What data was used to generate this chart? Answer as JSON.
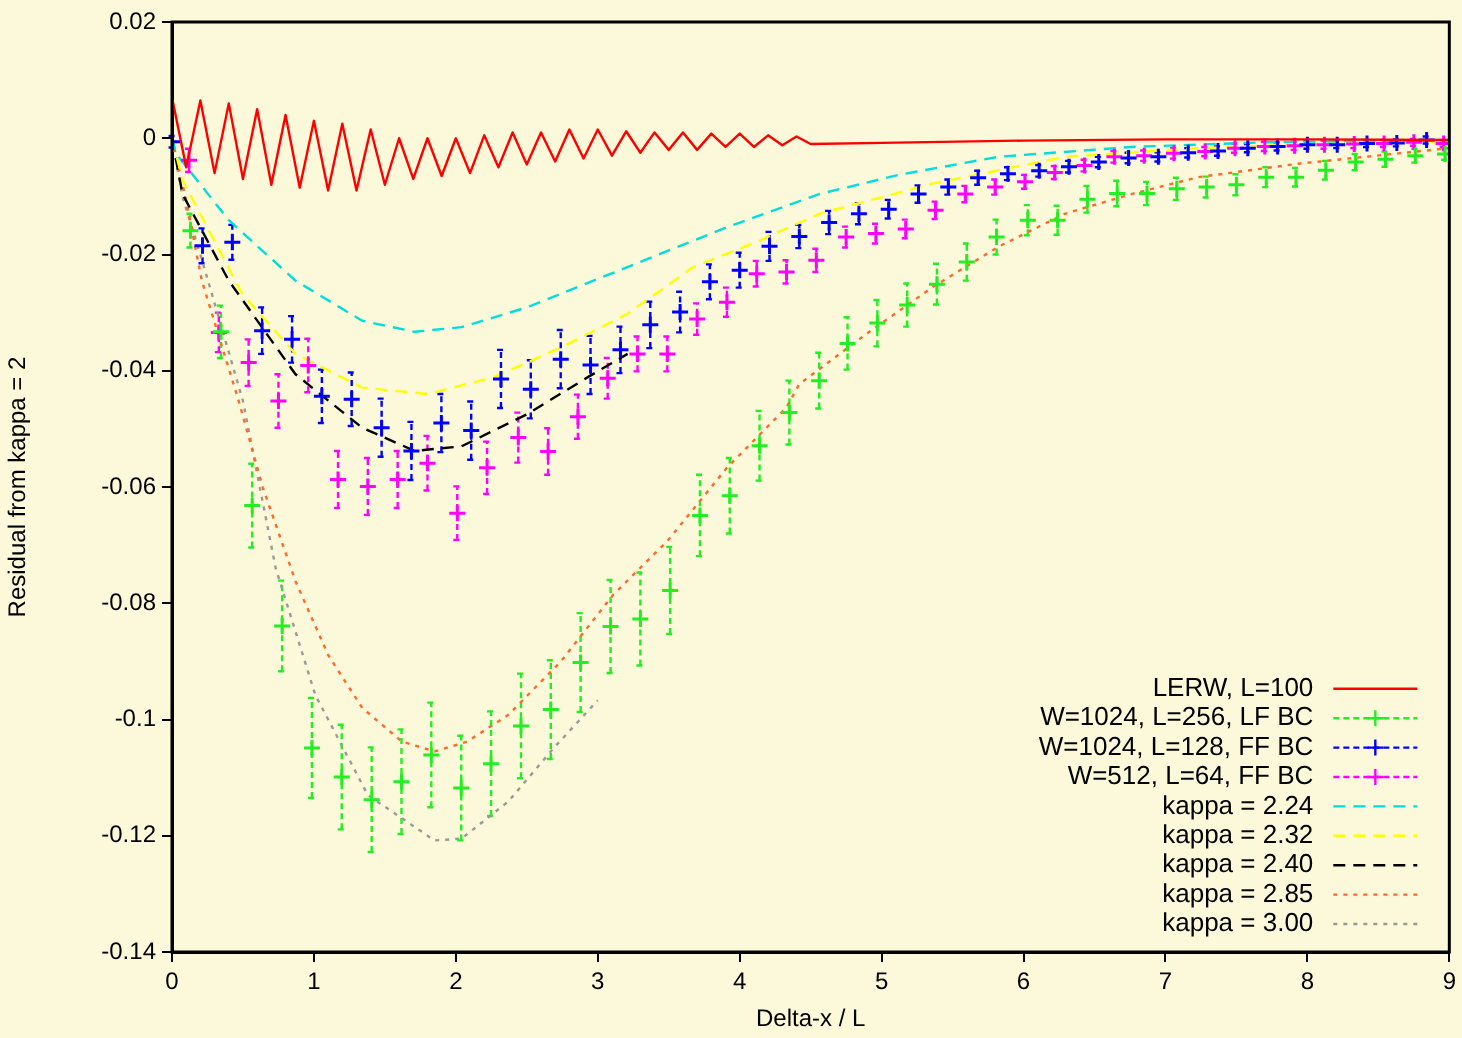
{
  "chart_data": {
    "type": "line",
    "xlabel": "Delta-x / L",
    "ylabel": "Residual from kappa = 2",
    "xlim": [
      0,
      9
    ],
    "xticks": [
      0,
      1,
      2,
      3,
      4,
      5,
      6,
      7,
      8,
      9
    ],
    "ylim": [
      -0.14,
      0.02
    ],
    "yticks": [
      -0.14,
      -0.12,
      -0.1,
      -0.08,
      -0.06,
      -0.04,
      -0.02,
      0,
      0.02
    ],
    "grid": false,
    "legend": "bottom right",
    "series": [
      {
        "name": "LERW, L=100",
        "color": "#ff0000",
        "line_style": "solid",
        "marker": "none",
        "x": [
          0,
          0.1,
          0.2,
          0.3,
          0.4,
          0.5,
          0.6,
          0.7,
          0.8,
          0.9,
          1.0,
          1.1,
          1.2,
          1.3,
          1.4,
          1.5,
          1.6,
          1.7,
          1.8,
          1.9,
          2.0,
          2.1,
          2.2,
          2.3,
          2.4,
          2.5,
          2.6,
          2.7,
          2.8,
          2.9,
          3.0,
          3.1,
          3.2,
          3.3,
          3.4,
          3.5,
          3.6,
          3.7,
          3.8,
          3.9,
          4.0,
          4.1,
          4.2,
          4.3,
          4.4,
          4.5,
          5,
          6,
          7,
          8,
          9
        ],
        "values": [
          0.007,
          -0.005,
          0.0065,
          -0.006,
          0.006,
          -0.007,
          0.005,
          -0.008,
          0.004,
          -0.0085,
          0.003,
          -0.009,
          0.0025,
          -0.009,
          0.0015,
          -0.008,
          0.0,
          -0.007,
          0.0,
          -0.0065,
          0.0,
          -0.006,
          0.0005,
          -0.005,
          0.001,
          -0.0045,
          0.001,
          -0.004,
          0.0015,
          -0.0035,
          0.0015,
          -0.003,
          0.0012,
          -0.0025,
          0.001,
          -0.002,
          0.001,
          -0.002,
          0.0008,
          -0.0015,
          0.0008,
          -0.0015,
          0.0005,
          -0.0012,
          0.0003,
          -0.001,
          -0.0008,
          -0.0004,
          -0.0002,
          -0.0002,
          -0.0003
        ]
      },
      {
        "name": "W=1024, L=256, LF BC",
        "type": "scatter",
        "color": "#22ee22",
        "marker": "cross",
        "x": [
          0.13,
          0.345,
          0.565,
          0.776,
          0.986,
          1.196,
          1.407,
          1.617,
          1.827,
          2.038,
          2.248,
          2.459,
          2.669,
          2.879,
          3.09,
          3.3,
          3.51,
          3.72,
          3.93,
          4.14,
          4.35,
          4.56,
          4.76,
          4.97,
          5.18,
          5.39,
          5.6,
          5.81,
          6.03,
          6.24,
          6.45,
          6.66,
          6.87,
          7.08,
          7.29,
          7.5,
          7.71,
          7.92,
          8.13,
          8.34,
          8.55,
          8.76,
          8.97
        ],
        "values": [
          -0.0159,
          -0.0333,
          -0.0632,
          -0.0839,
          -0.1049,
          -0.1099,
          -0.1138,
          -0.1107,
          -0.1061,
          -0.1118,
          -0.1076,
          -0.1011,
          -0.0983,
          -0.0902,
          -0.084,
          -0.0827,
          -0.0778,
          -0.0649,
          -0.0615,
          -0.0529,
          -0.0472,
          -0.0417,
          -0.0353,
          -0.0318,
          -0.0287,
          -0.0251,
          -0.0213,
          -0.017,
          -0.0141,
          -0.0141,
          -0.0105,
          -0.0095,
          -0.0095,
          -0.0087,
          -0.0084,
          -0.008,
          -0.0067,
          -0.0067,
          -0.0055,
          -0.0041,
          -0.0036,
          -0.003,
          -0.0027
        ],
        "errors": [
          0.0029,
          0.0045,
          0.0072,
          0.0078,
          0.0086,
          0.009,
          0.009,
          0.009,
          0.009,
          0.009,
          0.009,
          0.009,
          0.0085,
          0.0085,
          0.008,
          0.008,
          0.0075,
          0.007,
          0.0065,
          0.006,
          0.0055,
          0.0048,
          0.0045,
          0.004,
          0.0037,
          0.0035,
          0.0032,
          0.003,
          0.0026,
          0.0025,
          0.0023,
          0.0022,
          0.002,
          0.0019,
          0.0018,
          0.0018,
          0.0017,
          0.0016,
          0.0016,
          0.0014,
          0.0013,
          0.0012,
          0.001
        ]
      },
      {
        "name": "W=1024, L=128, FF BC",
        "type": "scatter",
        "color": "#0000ff",
        "marker": "cross",
        "x": [
          0.004,
          0.215,
          0.425,
          0.635,
          0.846,
          1.056,
          1.266,
          1.477,
          1.687,
          1.898,
          2.108,
          2.318,
          2.528,
          2.739,
          2.949,
          3.16,
          3.37,
          3.58,
          3.79,
          4.0,
          4.21,
          4.42,
          4.63,
          4.84,
          5.05,
          5.26,
          5.47,
          5.68,
          5.89,
          6.11,
          6.32,
          6.53,
          6.74,
          6.95,
          7.16,
          7.37,
          7.58,
          7.79,
          8.0,
          8.21,
          8.42,
          8.63,
          8.84
        ],
        "values": [
          -0.0006,
          -0.0185,
          -0.0179,
          -0.0331,
          -0.0346,
          -0.0444,
          -0.0449,
          -0.0498,
          -0.0538,
          -0.049,
          -0.0503,
          -0.0414,
          -0.0432,
          -0.038,
          -0.039,
          -0.0364,
          -0.0321,
          -0.0299,
          -0.0247,
          -0.0227,
          -0.0186,
          -0.0169,
          -0.0145,
          -0.013,
          -0.0122,
          -0.0096,
          -0.0084,
          -0.0068,
          -0.0061,
          -0.0056,
          -0.0049,
          -0.0041,
          -0.0034,
          -0.0032,
          -0.0025,
          -0.0022,
          -0.0017,
          -0.0014,
          -0.0011,
          -0.0011,
          -0.0009,
          -0.0008,
          -0.0003
        ],
        "errors": [
          0.001,
          0.003,
          0.003,
          0.004,
          0.004,
          0.0046,
          0.0046,
          0.005,
          0.005,
          0.005,
          0.005,
          0.005,
          0.005,
          0.005,
          0.005,
          0.004,
          0.004,
          0.0035,
          0.003,
          0.003,
          0.0025,
          0.002,
          0.002,
          0.0018,
          0.0016,
          0.0015,
          0.0013,
          0.0012,
          0.0011,
          0.001,
          0.001,
          0.0009,
          0.0009,
          0.0008,
          0.0008,
          0.0008,
          0.0007,
          0.0007,
          0.0007,
          0.0006,
          0.0006,
          0.0006,
          0.0006
        ]
      },
      {
        "name": "W=512, L=64, FF BC",
        "type": "scatter",
        "color": "#ff00ff",
        "marker": "cross",
        "x": [
          0.12,
          0.33,
          0.54,
          0.75,
          0.96,
          1.17,
          1.38,
          1.59,
          1.8,
          2.01,
          2.22,
          2.44,
          2.65,
          2.86,
          3.07,
          3.28,
          3.49,
          3.7,
          3.91,
          4.12,
          4.33,
          4.54,
          4.75,
          4.96,
          5.17,
          5.38,
          5.59,
          5.8,
          6.01,
          6.22,
          6.43,
          6.64,
          6.85,
          7.06,
          7.28,
          7.49,
          7.7,
          7.91,
          8.12,
          8.33,
          8.54,
          8.75,
          8.96
        ],
        "values": [
          -0.0038,
          -0.0334,
          -0.0386,
          -0.0452,
          -0.0391,
          -0.0587,
          -0.0599,
          -0.0587,
          -0.0559,
          -0.0645,
          -0.0567,
          -0.0515,
          -0.0539,
          -0.0479,
          -0.0413,
          -0.0371,
          -0.0371,
          -0.0311,
          -0.0282,
          -0.0233,
          -0.023,
          -0.021,
          -0.017,
          -0.0164,
          -0.0156,
          -0.0124,
          -0.0096,
          -0.0084,
          -0.0075,
          -0.0059,
          -0.0047,
          -0.0032,
          -0.003,
          -0.0026,
          -0.0023,
          -0.0017,
          -0.0014,
          -0.0013,
          -0.0011,
          -0.001,
          -0.0009,
          -0.0007,
          -0.0009
        ],
        "errors": [
          0.002,
          0.0034,
          0.004,
          0.0046,
          0.0046,
          0.0049,
          0.0049,
          0.0049,
          0.0047,
          0.0046,
          0.0045,
          0.0043,
          0.004,
          0.0038,
          0.0035,
          0.003,
          0.003,
          0.0027,
          0.0025,
          0.0022,
          0.002,
          0.002,
          0.0018,
          0.0017,
          0.0016,
          0.0015,
          0.0014,
          0.0013,
          0.0012,
          0.0011,
          0.001,
          0.001,
          0.0009,
          0.0009,
          0.0008,
          0.0008,
          0.0008,
          0.0007,
          0.0007,
          0.0007,
          0.0006,
          0.0006,
          0.0006
        ]
      },
      {
        "name": "kappa = 2.24",
        "color": "#00dddd",
        "line_style": "dashed",
        "marker": "none",
        "x": [
          0,
          0.03,
          0.4,
          0.87,
          1.34,
          1.71,
          2.04,
          2.5,
          2.97,
          3.44,
          3.91,
          4.56,
          5.12,
          5.82,
          6.76,
          7.69,
          9
        ],
        "values": [
          0,
          -0.0027,
          -0.0141,
          -0.0245,
          -0.0314,
          -0.0333,
          -0.0325,
          -0.0291,
          -0.0245,
          -0.0199,
          -0.0153,
          -0.0096,
          -0.0063,
          -0.0032,
          -0.0015,
          -0.0007,
          -0.0003
        ]
      },
      {
        "name": "kappa = 2.32",
        "color": "#ffff00",
        "line_style": "dashed",
        "marker": "none",
        "x": [
          0,
          0.074,
          0.495,
          0.87,
          1.34,
          1.8,
          2.27,
          2.74,
          3.21,
          3.67,
          4.14,
          4.56,
          5.36,
          6.29,
          7.23,
          8.16,
          9
        ],
        "values": [
          0,
          -0.0072,
          -0.0268,
          -0.0371,
          -0.0429,
          -0.044,
          -0.0411,
          -0.036,
          -0.0302,
          -0.0222,
          -0.0176,
          -0.013,
          -0.0078,
          -0.0032,
          -0.0017,
          -0.0009,
          -0.0005
        ]
      },
      {
        "name": "kappa = 2.40",
        "color": "#000000",
        "line_style": "dashed",
        "marker": "none",
        "x": [
          0,
          0.074,
          0.4,
          0.87,
          1.34,
          1.71,
          2.04,
          2.5,
          2.93,
          3.21
        ],
        "values": [
          0,
          -0.0096,
          -0.0245,
          -0.0406,
          -0.0498,
          -0.0538,
          -0.053,
          -0.0475,
          -0.0411,
          -0.0371
        ]
      },
      {
        "name": "kappa = 2.85",
        "color": "#ff6a2a",
        "line_style": "dotted",
        "marker": "none",
        "x": [
          0,
          0.1,
          0.21,
          0.47,
          0.64,
          0.87,
          1.1,
          1.34,
          1.62,
          1.85,
          2.08,
          2.37,
          2.74,
          3.11,
          3.49,
          3.91,
          4.33,
          4.42,
          4.89,
          5.36,
          5.82,
          6.29,
          6.76,
          7.23,
          7.93,
          9
        ],
        "values": [
          0,
          -0.0107,
          -0.0245,
          -0.0452,
          -0.0601,
          -0.0762,
          -0.0889,
          -0.098,
          -0.1038,
          -0.1055,
          -0.1038,
          -0.0992,
          -0.09,
          -0.0785,
          -0.0693,
          -0.0567,
          -0.0463,
          -0.0423,
          -0.0337,
          -0.0256,
          -0.0187,
          -0.013,
          -0.0096,
          -0.0067,
          -0.0044,
          -0.0017
        ]
      },
      {
        "name": "kappa = 3.00",
        "color": "#999999",
        "line_style": "dotted",
        "marker": "none",
        "x": [
          0,
          0.074,
          0.2,
          0.5,
          0.73,
          1.01,
          1.38,
          1.85,
          2.04,
          2.37,
          2.69,
          3.0
        ],
        "values": [
          0,
          -0.0101,
          -0.02,
          -0.0452,
          -0.0739,
          -0.0958,
          -0.113,
          -0.1208,
          -0.1205,
          -0.1141,
          -0.1049,
          -0.0967
        ]
      }
    ]
  }
}
